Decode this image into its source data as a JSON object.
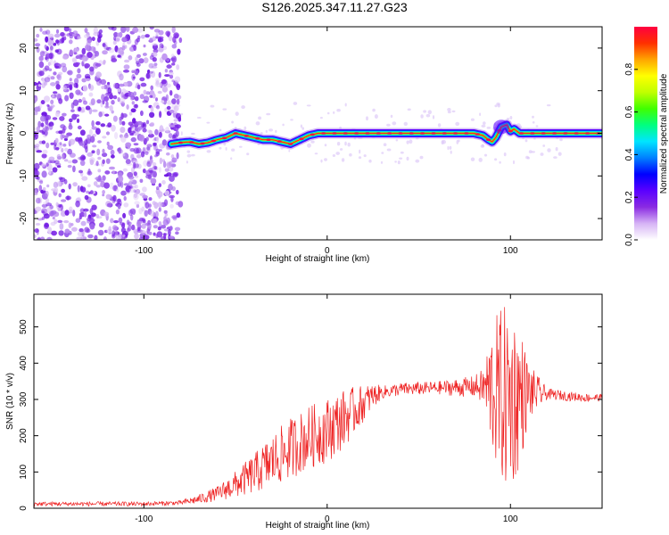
{
  "title": "S126.2025.347.11.27.G23",
  "chart_data": [
    {
      "type": "heatmap",
      "name": "spectrogram",
      "xlabel": "Height of straight line (km)",
      "ylabel": "Frequency (Hz)",
      "xlim": [
        -160,
        150
      ],
      "ylim": [
        -25,
        25
      ],
      "xticks": [
        -100,
        0,
        100
      ],
      "yticks": [
        -20,
        -10,
        0,
        10,
        20
      ],
      "colorbar": {
        "label": "Normalized spectral amplitude",
        "range": [
          0,
          1
        ],
        "ticks": [
          "0.0",
          "0.2",
          "0.4",
          "0.6",
          "0.8"
        ],
        "colors": [
          "#ffffff",
          "#d6b3f5",
          "#8a2be2",
          "#5a00ff",
          "#0000ff",
          "#0080ff",
          "#00e5ff",
          "#00ff80",
          "#40ff00",
          "#c0ff00",
          "#ffff00",
          "#ffa500",
          "#ff3000",
          "#ff0040"
        ]
      },
      "noise_region_x": [
        -160,
        -80
      ],
      "ridge": {
        "x": [
          -85,
          -80,
          -75,
          -70,
          -65,
          -60,
          -55,
          -50,
          -45,
          -40,
          -35,
          -30,
          -25,
          -20,
          -15,
          -10,
          -5,
          0,
          5,
          10,
          20,
          30,
          40,
          50,
          60,
          70,
          75,
          80,
          85,
          88,
          90,
          92,
          95,
          98,
          100,
          102,
          105,
          110,
          120,
          130,
          140,
          150
        ],
        "freq": [
          -2.5,
          -2.2,
          -2,
          -2.5,
          -2.2,
          -1.5,
          -1,
          0,
          -0.5,
          -1,
          -1.5,
          -1.5,
          -2,
          -2.5,
          -1.5,
          -0.5,
          0,
          0,
          0,
          0,
          0,
          0,
          0,
          0,
          0,
          0,
          0,
          0,
          -0.5,
          -1.5,
          -2,
          -1,
          1.5,
          2,
          0.5,
          1,
          0,
          0,
          0,
          0,
          0,
          0
        ]
      }
    },
    {
      "type": "line",
      "name": "snr",
      "xlabel": "Height of straight line (km)",
      "ylabel": "SNR (10 * v/v)",
      "xlim": [
        -160,
        150
      ],
      "ylim": [
        0,
        590
      ],
      "xticks": [
        -100,
        0,
        100
      ],
      "yticks": [
        0,
        100,
        200,
        300,
        400,
        500
      ],
      "color": "#ee2222",
      "trend": {
        "x": [
          -160,
          -100,
          -80,
          -70,
          -60,
          -50,
          -40,
          -30,
          -20,
          -10,
          0,
          10,
          20,
          25,
          30,
          40,
          50,
          60,
          70,
          80,
          85,
          90,
          95,
          100,
          105,
          110,
          120,
          130,
          140,
          150
        ],
        "y": [
          12,
          12,
          15,
          25,
          40,
          65,
          95,
          130,
          165,
          195,
          215,
          250,
          290,
          310,
          320,
          328,
          330,
          332,
          333,
          335,
          335,
          330,
          310,
          300,
          310,
          320,
          315,
          310,
          305,
          305
        ]
      },
      "noise_amplitude": {
        "x": [
          -160,
          -80,
          -60,
          -40,
          -30,
          -20,
          0,
          10,
          20,
          30,
          60,
          80,
          85,
          90,
          95,
          100,
          105,
          110,
          120,
          150
        ],
        "a": [
          6,
          6,
          20,
          55,
          75,
          85,
          90,
          80,
          50,
          18,
          18,
          30,
          50,
          180,
          250,
          260,
          200,
          80,
          15,
          10
        ]
      }
    }
  ]
}
